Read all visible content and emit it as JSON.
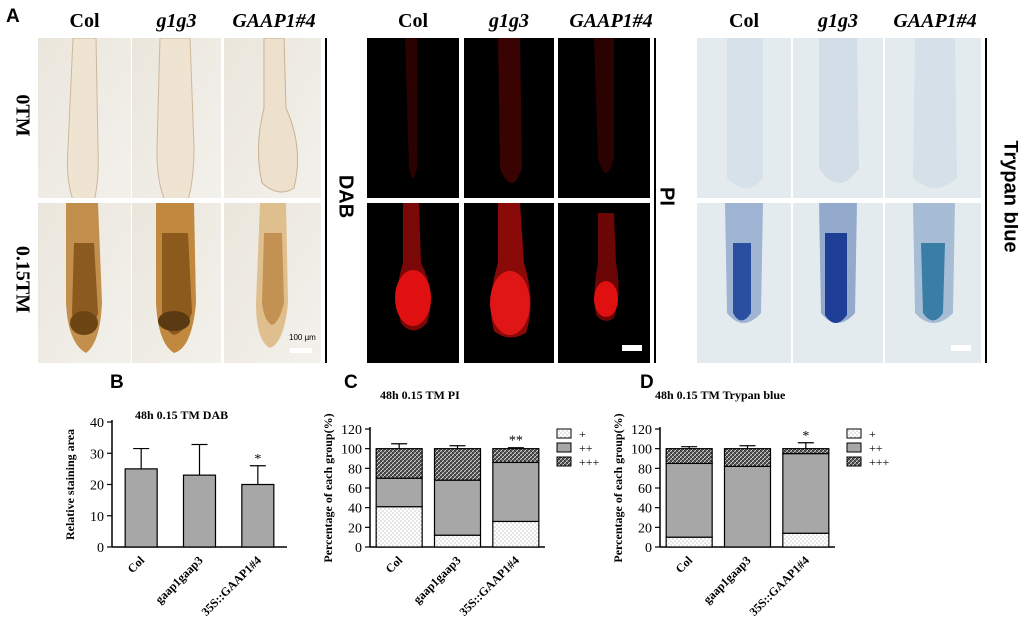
{
  "panel_a": {
    "letter": "A",
    "column_groups": [
      {
        "stain": "DAB",
        "columns": [
          "Col",
          "g1g3",
          "GAAP1#4"
        ]
      },
      {
        "stain": "PI",
        "columns": [
          "Col",
          "g1g3",
          "GAAP1#4"
        ]
      },
      {
        "stain": "Trypan blue",
        "columns": [
          "Col",
          "g1g3",
          "GAAP1#4"
        ]
      }
    ],
    "rows": [
      "0TM",
      "0.15TM"
    ],
    "scale_bar_label": "100 µm"
  },
  "charts": [
    {
      "letter": "B",
      "title": "48h 0.15 TM DAB",
      "ylabel": "Relative staining area",
      "categories": [
        "Col",
        "gaap1gaap3",
        "35S::GAAP1#4"
      ]
    },
    {
      "letter": "C",
      "title": "48h 0.15 TM  PI",
      "ylabel": "Percentage of each group(%)",
      "categories": [
        "Col",
        "gaap1gaap3",
        "35S::GAAP1#4"
      ],
      "legend": [
        "+",
        "++",
        "+++"
      ]
    },
    {
      "letter": "D",
      "title": "48h 0.15 TM Trypan blue",
      "ylabel": "Percentage of each group(%)",
      "categories": [
        "Col",
        "gaap1gaap3",
        "35S::GAAP1#4"
      ],
      "legend": [
        "+",
        "++",
        "+++"
      ]
    }
  ],
  "colors": {
    "bar_gray": "#a7a7a7",
    "dab_brown": "#8a5a1e",
    "pi_red": "#e01010",
    "trypan_blue": "#2a4fa0"
  },
  "chart_data": [
    {
      "type": "bar",
      "title": "48h 0.15 TM DAB",
      "ylabel": "Relative staining area",
      "xlabel": "",
      "categories": [
        "Col",
        "gaap1gaap3",
        "35S::GAAP1#4"
      ],
      "values": [
        25,
        23,
        20
      ],
      "errors": [
        6.5,
        9.8,
        6
      ],
      "annotations": [
        "",
        "",
        "*"
      ],
      "ylim": [
        0,
        40
      ],
      "yticks": [
        0,
        10,
        20,
        30,
        40
      ]
    },
    {
      "type": "bar",
      "stacked": true,
      "title": "48h 0.15 TM  PI",
      "ylabel": "Percentage of each group(%)",
      "xlabel": "",
      "categories": [
        "Col",
        "gaap1gaap3",
        "35S::GAAP1#4"
      ],
      "series": [
        {
          "name": "+",
          "values": [
            41,
            12,
            26
          ],
          "errors": [
            12,
            2,
            2
          ],
          "annotations": [
            "",
            "**",
            ""
          ]
        },
        {
          "name": "++",
          "values": [
            29,
            56,
            60
          ]
        },
        {
          "name": "+++",
          "values": [
            30,
            32,
            14
          ],
          "errors": [
            5,
            3,
            1
          ],
          "annotations": [
            "",
            "",
            "**"
          ]
        }
      ],
      "ylim": [
        0,
        120
      ],
      "yticks": [
        0,
        20,
        40,
        60,
        80,
        100,
        120
      ],
      "legend_position": "top-right"
    },
    {
      "type": "bar",
      "stacked": true,
      "title": "48h 0.15 TM Trypan blue",
      "ylabel": "Percentage of each group(%)",
      "xlabel": "",
      "categories": [
        "Col",
        "gaap1gaap3",
        "35S::GAAP1#4"
      ],
      "series": [
        {
          "name": "+",
          "values": [
            10,
            0,
            14
          ],
          "errors": [
            3,
            0,
            7
          ],
          "annotations": [
            "",
            "*",
            ""
          ]
        },
        {
          "name": "++",
          "values": [
            75,
            82,
            81
          ]
        },
        {
          "name": "+++",
          "values": [
            15,
            18,
            5
          ],
          "errors": [
            2,
            3,
            6
          ],
          "annotations": [
            "",
            "",
            "*"
          ]
        }
      ],
      "ylim": [
        0,
        120
      ],
      "yticks": [
        0,
        20,
        40,
        60,
        80,
        100,
        120
      ],
      "legend_position": "top-right"
    }
  ]
}
